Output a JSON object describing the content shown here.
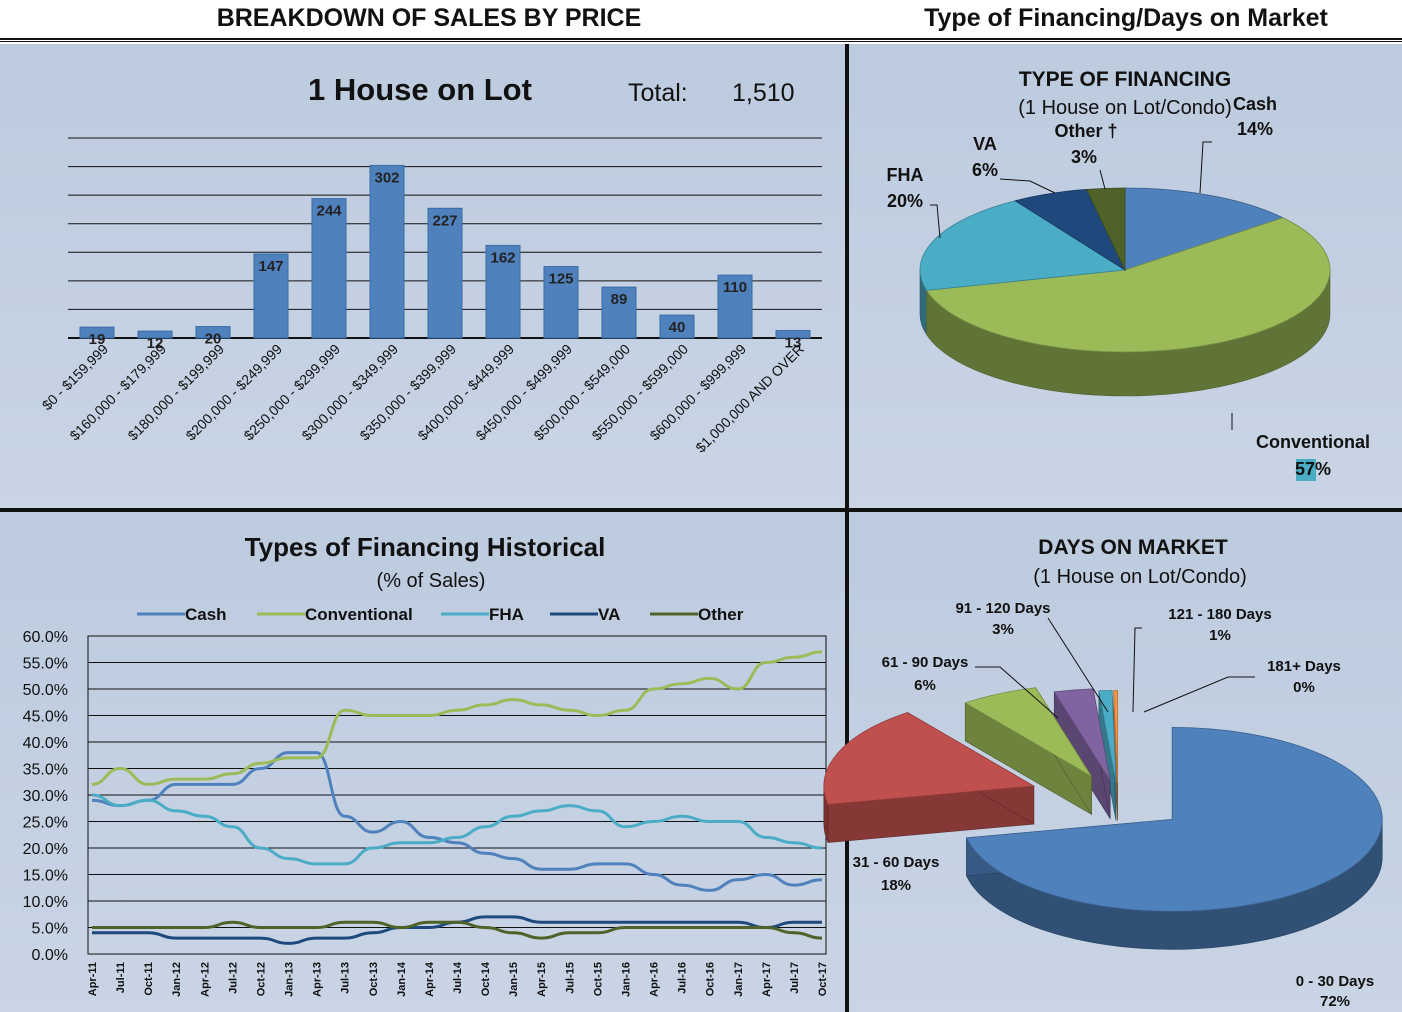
{
  "headers": {
    "left": "BREAKDOWN OF SALES BY PRICE",
    "right": "Type of Financing/Days on Market"
  },
  "chart_data": [
    {
      "type": "bar",
      "title": "1 House on Lot",
      "total_label": "Total:",
      "total_value": "1,510",
      "categories": [
        "$0 - $159,999",
        "$160,000 - $179,999",
        "$180,000 - $199,999",
        "$200,000 - $249,999",
        "$250,000 - $299,999",
        "$300,000 - $349,999",
        "$350,000 - $399,999",
        "$400,000 - $449,999",
        "$450,000 - $499,999",
        "$500,000 - $549,000",
        "$550,000 - $599,000",
        "$600,000 - $999,999",
        "$1,000,000 AND OVER"
      ],
      "values": [
        19,
        12,
        20,
        147,
        244,
        302,
        227,
        162,
        125,
        89,
        40,
        110,
        13
      ],
      "ylim": [
        0,
        350
      ],
      "grid": true,
      "colors": {
        "bar": "#4f81bd"
      }
    },
    {
      "type": "pie",
      "title": "TYPE OF FINANCING",
      "subtitle": "(1 House on Lot/Condo)",
      "slices": [
        {
          "name": "Cash",
          "value": 14,
          "label": "14%",
          "color": "#4f81bd"
        },
        {
          "name": "Conventional",
          "value": 57,
          "label": "57%",
          "color": "#9bbb59"
        },
        {
          "name": "FHA",
          "value": 20,
          "label": "20%",
          "color": "#4bacc6"
        },
        {
          "name": "VA",
          "value": 6,
          "label": "6%",
          "color": "#1f497d"
        },
        {
          "name": "Other †",
          "value": 3,
          "label": "3%",
          "color": "#4f6228"
        }
      ]
    },
    {
      "type": "line",
      "title": "Types of Financing Historical",
      "subtitle": "(% of Sales)",
      "x": [
        "Apr-11",
        "Jul-11",
        "Oct-11",
        "Jan-12",
        "Apr-12",
        "Jul-12",
        "Oct-12",
        "Jan-13",
        "Apr-13",
        "Jul-13",
        "Oct-13",
        "Jan-14",
        "Apr-14",
        "Jul-14",
        "Oct-14",
        "Jan-15",
        "Apr-15",
        "Jul-15",
        "Oct-15",
        "Jan-16",
        "Apr-16",
        "Jul-16",
        "Oct-16",
        "Jan-17",
        "Apr-17",
        "Jul-17",
        "Oct-17"
      ],
      "ylim": [
        0,
        60
      ],
      "yticks": [
        "0.0%",
        "5.0%",
        "10.0%",
        "15.0%",
        "20.0%",
        "25.0%",
        "30.0%",
        "35.0%",
        "40.0%",
        "45.0%",
        "50.0%",
        "55.0%",
        "60.0%"
      ],
      "legend": "top",
      "series": [
        {
          "name": "Cash",
          "color": "#4f81bd",
          "values": [
            29,
            28,
            29,
            32,
            32,
            32,
            35,
            38,
            38,
            26,
            23,
            25,
            22,
            21,
            19,
            18,
            16,
            16,
            17,
            17,
            15,
            13,
            12,
            14,
            15,
            13,
            14
          ]
        },
        {
          "name": "Conventional",
          "color": "#9bbb59",
          "values": [
            32,
            35,
            32,
            33,
            33,
            34,
            36,
            37,
            37,
            46,
            45,
            45,
            45,
            46,
            47,
            48,
            47,
            46,
            45,
            46,
            50,
            51,
            52,
            50,
            55,
            56,
            57
          ]
        },
        {
          "name": "FHA",
          "color": "#4bacc6",
          "values": [
            30,
            28,
            29,
            27,
            26,
            24,
            20,
            18,
            17,
            17,
            20,
            21,
            21,
            22,
            24,
            26,
            27,
            28,
            27,
            24,
            25,
            26,
            25,
            25,
            22,
            21,
            20
          ]
        },
        {
          "name": "VA",
          "color": "#1f497d",
          "values": [
            4,
            4,
            4,
            3,
            3,
            3,
            3,
            2,
            3,
            3,
            4,
            5,
            5,
            6,
            7,
            7,
            6,
            6,
            6,
            6,
            6,
            6,
            6,
            6,
            5,
            6,
            6
          ]
        },
        {
          "name": "Other",
          "color": "#4f6228",
          "values": [
            5,
            5,
            5,
            5,
            5,
            6,
            5,
            5,
            5,
            6,
            6,
            5,
            6,
            6,
            5,
            4,
            3,
            4,
            4,
            5,
            5,
            5,
            5,
            5,
            5,
            4,
            3
          ]
        }
      ]
    },
    {
      "type": "pie",
      "title": "DAYS ON MARKET",
      "subtitle": "(1 House on Lot/Condo)",
      "slices": [
        {
          "name": "0 - 30 Days",
          "value": 72,
          "label": "72%",
          "color": "#4f81bd"
        },
        {
          "name": "31 - 60 Days",
          "value": 18,
          "label": "18%",
          "color": "#c0504d"
        },
        {
          "name": "61 - 90 Days",
          "value": 6,
          "label": "6%",
          "color": "#9bbb59"
        },
        {
          "name": "91 - 120 Days",
          "value": 3,
          "label": "3%",
          "color": "#8064a2"
        },
        {
          "name": "121 - 180 Days",
          "value": 1,
          "label": "1%",
          "color": "#4bacc6"
        },
        {
          "name": "181+ Days",
          "value": 0.3,
          "label": "0%",
          "color": "#f79646"
        }
      ]
    }
  ]
}
